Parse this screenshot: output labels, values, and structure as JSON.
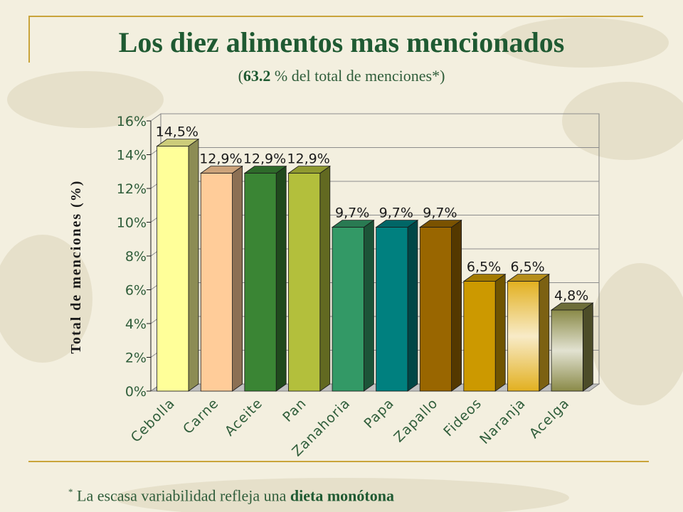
{
  "slide": {
    "title": "Los diez alimentos mas mencionados",
    "subtitle_open": "(",
    "subtitle_bold": "63.2",
    "subtitle_rest": " % del total de menciones*)",
    "footnote_marker": "*",
    "footnote_text": " La escasa variabilidad refleja una ",
    "footnote_bold": "dieta monótona"
  },
  "colors": {
    "accent_line": "#c9a43b",
    "title_green": "#1f5a32"
  },
  "chart_data": {
    "type": "bar",
    "ylabel": "Total de menciones (%)",
    "xlabel": "",
    "ylim": [
      0,
      16
    ],
    "yticks": [
      0,
      2,
      4,
      6,
      8,
      10,
      12,
      14,
      16
    ],
    "ytick_labels": [
      "0%",
      "2%",
      "4%",
      "6%",
      "8%",
      "10%",
      "12%",
      "14%",
      "16%"
    ],
    "grid": true,
    "categories": [
      "Cebolla",
      "Carne",
      "Aceite",
      "Pan",
      "Zanahoria",
      "Papa",
      "Zapallo",
      "Fideos",
      "Naranja",
      "Acelga"
    ],
    "values": [
      14.5,
      12.9,
      12.9,
      12.9,
      9.7,
      9.7,
      9.7,
      6.5,
      6.5,
      4.8
    ],
    "data_labels": [
      "14,5%",
      "12,9%",
      "12,9%",
      "12,9%",
      "9,7%",
      "9,7%",
      "9,7%",
      "6,5%",
      "6,5%",
      "4,8%"
    ],
    "bar_colors": [
      "#ffff99",
      "#ffcc99",
      "#3a8534",
      "#b3bf3c",
      "#339966",
      "#00807f",
      "#996600",
      "#cc9900",
      "#e2b020",
      "#8a8a48"
    ]
  }
}
